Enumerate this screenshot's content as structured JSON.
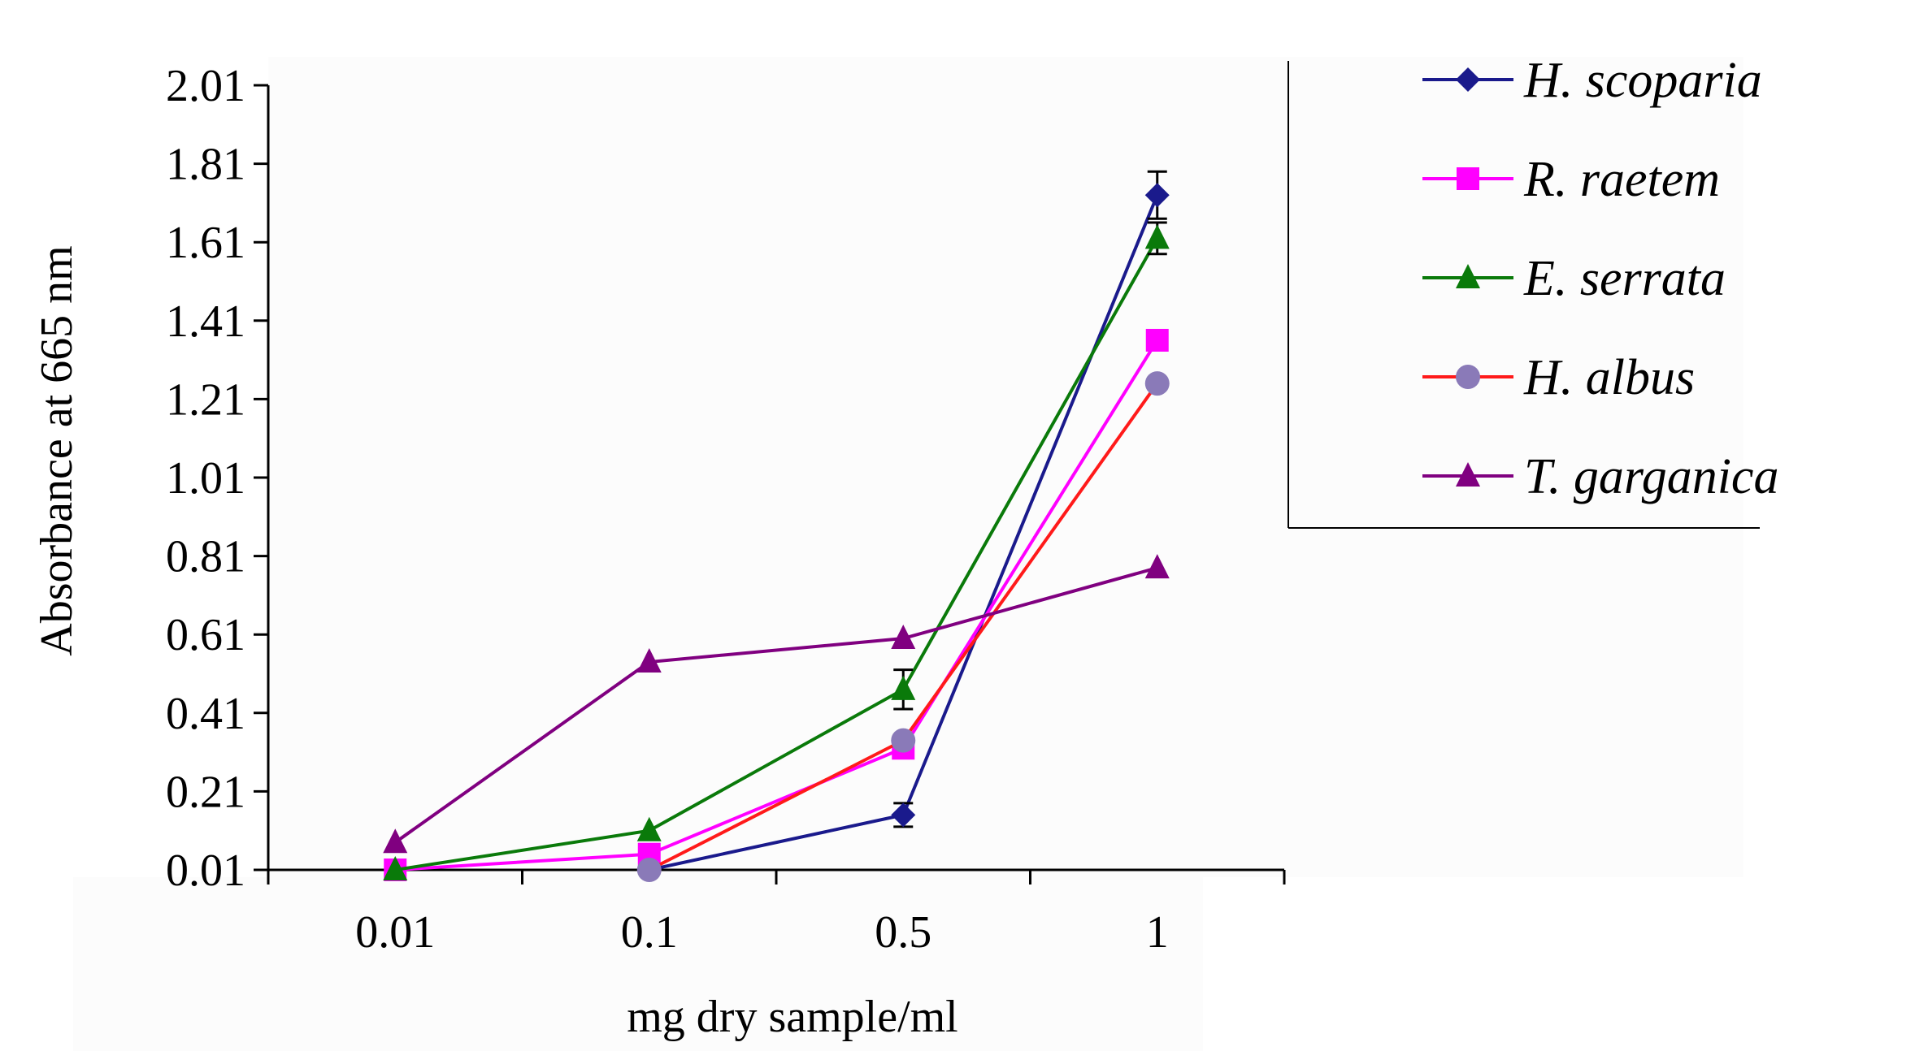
{
  "chart_data": {
    "type": "line",
    "title": "",
    "xlabel": "mg dry sample/ml",
    "ylabel": "Absorbance at 665 nm",
    "categories": [
      "0.01",
      "0.1",
      "0.5",
      "1"
    ],
    "y_ticks": [
      "0.01",
      "0.21",
      "0.41",
      "0.61",
      "0.81",
      "1.01",
      "1.21",
      "1.41",
      "1.61",
      "1.81",
      "2.01"
    ],
    "ylim": [
      0.01,
      2.01
    ],
    "grid": false,
    "legend_position": "top-right",
    "series": [
      {
        "name": "H. scoparia",
        "color": "#1a1a8c",
        "marker": "diamond",
        "values": [
          null,
          0.01,
          0.15,
          1.73
        ],
        "errors": [
          null,
          null,
          0.03,
          0.06
        ]
      },
      {
        "name": "R. raetem",
        "color": "#ff00ff",
        "marker": "square",
        "values": [
          0.01,
          0.05,
          0.32,
          1.36
        ],
        "errors": [
          null,
          null,
          null,
          null
        ]
      },
      {
        "name": "E. serrata",
        "color": "#0a7a0a",
        "marker": "triangle",
        "values": [
          0.01,
          0.11,
          0.47,
          1.62
        ],
        "errors": [
          null,
          null,
          0.05,
          0.04
        ]
      },
      {
        "name": "H. albus",
        "color": "#ff1a1a",
        "marker": "circle",
        "marker_color": "#8a7ab8",
        "values": [
          null,
          0.01,
          0.34,
          1.25
        ],
        "errors": [
          null,
          null,
          null,
          null
        ]
      },
      {
        "name": "T. garganica",
        "color": "#800080",
        "marker": "triangle",
        "values": [
          0.08,
          0.54,
          0.6,
          0.78
        ],
        "errors": [
          null,
          null,
          null,
          null
        ]
      }
    ]
  }
}
